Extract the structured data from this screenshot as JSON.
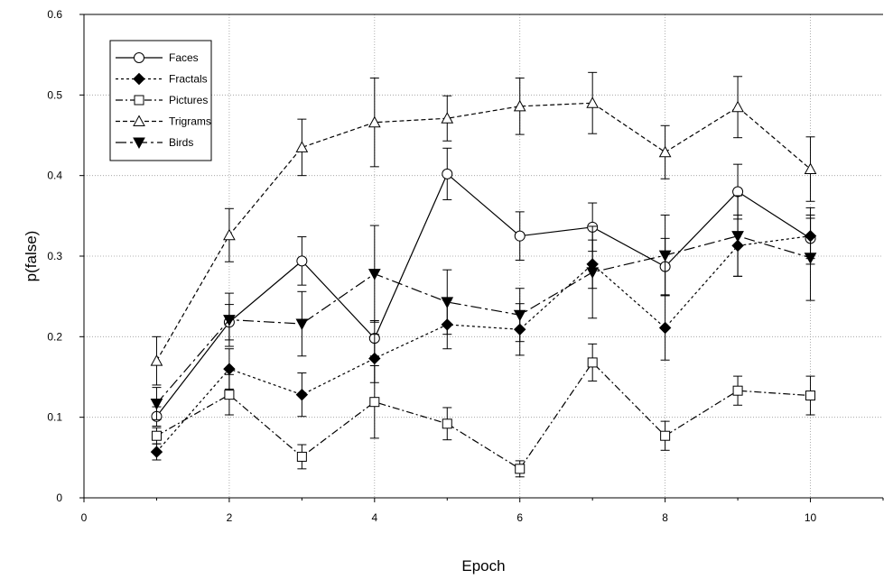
{
  "chart_data": {
    "type": "line",
    "xlabel": "Epoch",
    "ylabel": "p(false)",
    "xlim": [
      0,
      11
    ],
    "ylim": [
      0,
      0.6
    ],
    "x_ticks": [
      "0",
      "2",
      "4",
      "6",
      "8",
      "10"
    ],
    "y_ticks": [
      "0",
      "0.1",
      "0.2",
      "0.3",
      "0.4",
      "0.5",
      "0.6"
    ],
    "grid": true,
    "legend_position": "top-left",
    "series": [
      {
        "name": "Faces",
        "marker": "circle-open",
        "line_style": "solid",
        "x": [
          1,
          2,
          3,
          4,
          5,
          6,
          7,
          8,
          9,
          10
        ],
        "values": [
          0.101,
          0.218,
          0.294,
          0.198,
          0.402,
          0.325,
          0.336,
          0.287,
          0.38,
          0.322
        ],
        "errors": [
          0.012,
          0.022,
          0.03,
          0.022,
          0.032,
          0.03,
          0.03,
          0.035,
          0.034,
          0.025
        ]
      },
      {
        "name": "Fractals",
        "marker": "diamond-filled",
        "line_style": "dotted",
        "x": [
          1,
          2,
          3,
          4,
          5,
          6,
          7,
          8,
          9,
          10
        ],
        "values": [
          0.057,
          0.16,
          0.128,
          0.173,
          0.215,
          0.209,
          0.29,
          0.211,
          0.313,
          0.325
        ],
        "errors": [
          0.01,
          0.025,
          0.027,
          0.03,
          0.03,
          0.032,
          0.03,
          0.04,
          0.038,
          0.035
        ]
      },
      {
        "name": "Pictures",
        "marker": "square-open",
        "line_style": "dash-dot",
        "x": [
          1,
          2,
          3,
          4,
          5,
          6,
          7,
          8,
          9,
          10
        ],
        "values": [
          0.077,
          0.128,
          0.051,
          0.119,
          0.092,
          0.036,
          0.168,
          0.077,
          0.133,
          0.127
        ],
        "errors": [
          0.01,
          0.025,
          0.015,
          0.045,
          0.02,
          0.01,
          0.023,
          0.018,
          0.018,
          0.024
        ]
      },
      {
        "name": "Trigrams",
        "marker": "triangle-open",
        "line_style": "dashed",
        "x": [
          1,
          2,
          3,
          4,
          5,
          6,
          7,
          8,
          9,
          10
        ],
        "values": [
          0.17,
          0.326,
          0.435,
          0.466,
          0.471,
          0.486,
          0.49,
          0.429,
          0.485,
          0.408
        ],
        "errors": [
          0.03,
          0.033,
          0.035,
          0.055,
          0.028,
          0.035,
          0.038,
          0.033,
          0.038,
          0.04
        ]
      },
      {
        "name": "Birds",
        "marker": "triangle-down-filled",
        "line_style": "long-dash-dot",
        "x": [
          1,
          2,
          3,
          4,
          5,
          6,
          7,
          8,
          9,
          10
        ],
        "values": [
          0.117,
          0.221,
          0.216,
          0.278,
          0.243,
          0.227,
          0.28,
          0.301,
          0.325,
          0.298
        ],
        "errors": [
          0.02,
          0.033,
          0.04,
          0.06,
          0.04,
          0.033,
          0.057,
          0.05,
          0.05,
          0.053
        ]
      }
    ]
  }
}
